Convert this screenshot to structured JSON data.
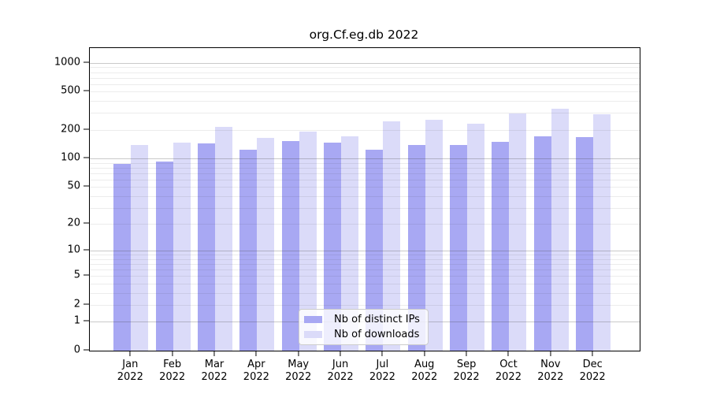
{
  "chart_data": {
    "type": "bar",
    "title": "org.Cf.eg.db 2022",
    "year": "2022",
    "categories": [
      "Jan",
      "Feb",
      "Mar",
      "Apr",
      "May",
      "Jun",
      "Jul",
      "Aug",
      "Sep",
      "Oct",
      "Nov",
      "Dec"
    ],
    "series": [
      {
        "name": "Nb of distinct IPs",
        "color": "#a8a8f3",
        "values": [
          87,
          92,
          145,
          123,
          153,
          146,
          123,
          139,
          139,
          149,
          172,
          169
        ]
      },
      {
        "name": "Nb of downloads",
        "color": "#dbdbf9",
        "values": [
          138,
          148,
          215,
          164,
          192,
          172,
          244,
          255,
          232,
          296,
          330,
          289
        ]
      }
    ],
    "yscale": "log1p",
    "y_ticks": [
      0,
      1,
      2,
      5,
      10,
      20,
      50,
      100,
      200,
      500,
      1000
    ],
    "ylim": [
      0,
      1430
    ],
    "grid": true,
    "grid_major_at": [
      1,
      10,
      100,
      1000
    ],
    "legend_position": "lower center",
    "colors": {
      "distinct_ips": "#a8a8f3",
      "downloads": "#dbdbf9",
      "axis": "#000000",
      "grid_major": "#b5b5b5",
      "grid_minor": "#e7e7e7",
      "legend_border": "#cccccc"
    }
  }
}
